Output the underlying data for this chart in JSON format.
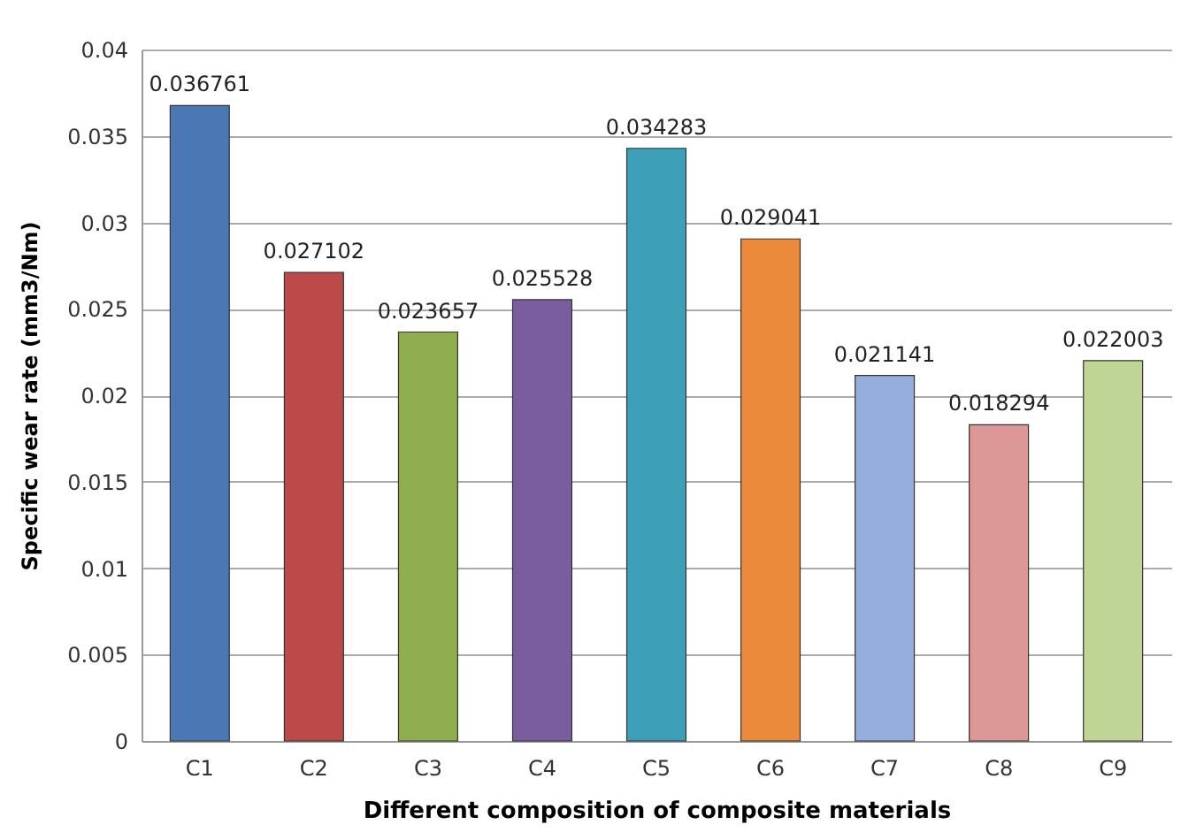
{
  "chart_data": {
    "type": "bar",
    "xlabel": "Different composition of composite materials",
    "ylabel": "Specific wear rate (mm3/Nm)",
    "categories": [
      "C1",
      "C2",
      "C3",
      "C4",
      "C5",
      "C6",
      "C7",
      "C8",
      "C9"
    ],
    "values": [
      0.036761,
      0.027102,
      0.023657,
      0.025528,
      0.034283,
      0.029041,
      0.021141,
      0.018294,
      0.022003
    ],
    "colors": [
      "#4a78b4",
      "#bb4a48",
      "#8fae4e",
      "#7a5d9e",
      "#3e9fb8",
      "#ec8a3c",
      "#95aedb",
      "#dc9897",
      "#bfd595"
    ],
    "ylim": [
      0,
      0.04
    ],
    "yticks": [
      0,
      0.005,
      0.01,
      0.015,
      0.02,
      0.025,
      0.03,
      0.035,
      0.04
    ],
    "grid": "y",
    "data_labels": true
  }
}
